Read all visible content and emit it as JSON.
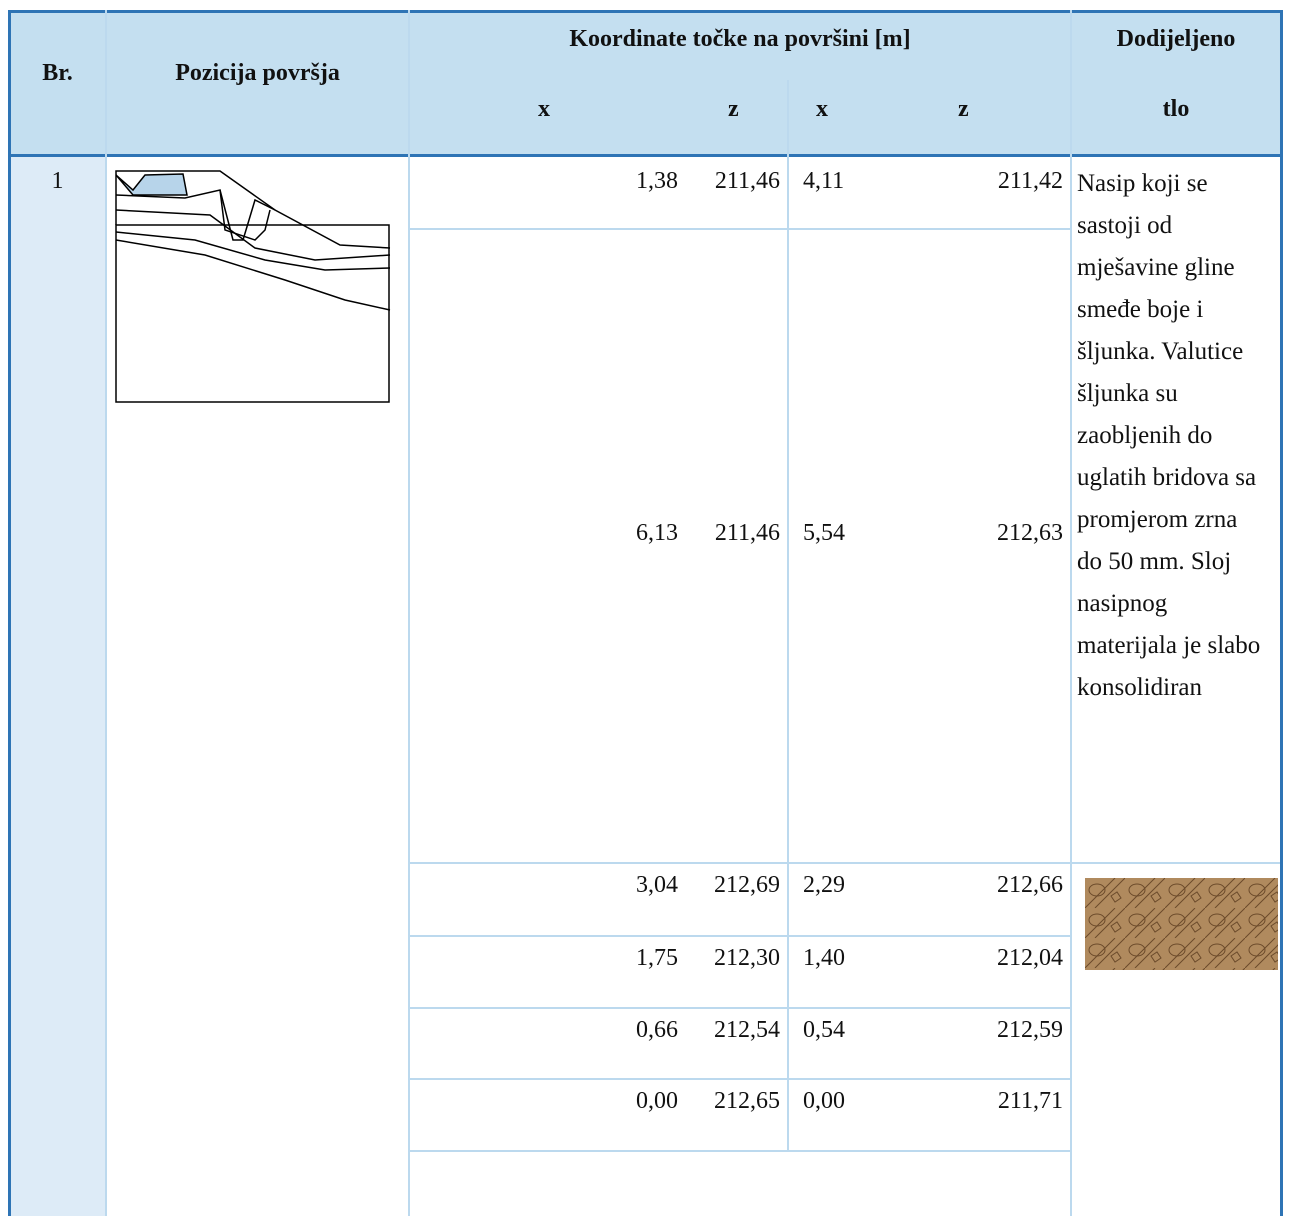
{
  "table": {
    "headers": {
      "number": "Br.",
      "position": "Pozicija površja",
      "coordinates": "Koordinate točke na površini [m]",
      "sub": [
        "x",
        "z",
        "x",
        "z"
      ],
      "soil": [
        "Dodijeljeno",
        "tlo"
      ]
    },
    "number": "1",
    "rows": [
      [
        "1,38",
        "211,46",
        "4,11",
        "211,42"
      ],
      [
        "6,13",
        "211,46",
        "5,54",
        "212,63"
      ],
      [
        "3,04",
        "212,69",
        "2,29",
        "212,66"
      ],
      [
        "1,75",
        "212,30",
        "1,40",
        "212,04"
      ],
      [
        "0,66",
        "212,54",
        "0,54",
        "212,59"
      ],
      [
        "0,00",
        "212,65",
        "0,00",
        "211,71"
      ]
    ],
    "soil_description": "Nasip koji se sastoji od mješavine gline smeđe boje i šljunka. Valutice šljunka su zaobljenih do uglatih bridova sa promjerom zrna do 50 mm. Sloj nasipnog materijala je slabo konsolidiran"
  }
}
